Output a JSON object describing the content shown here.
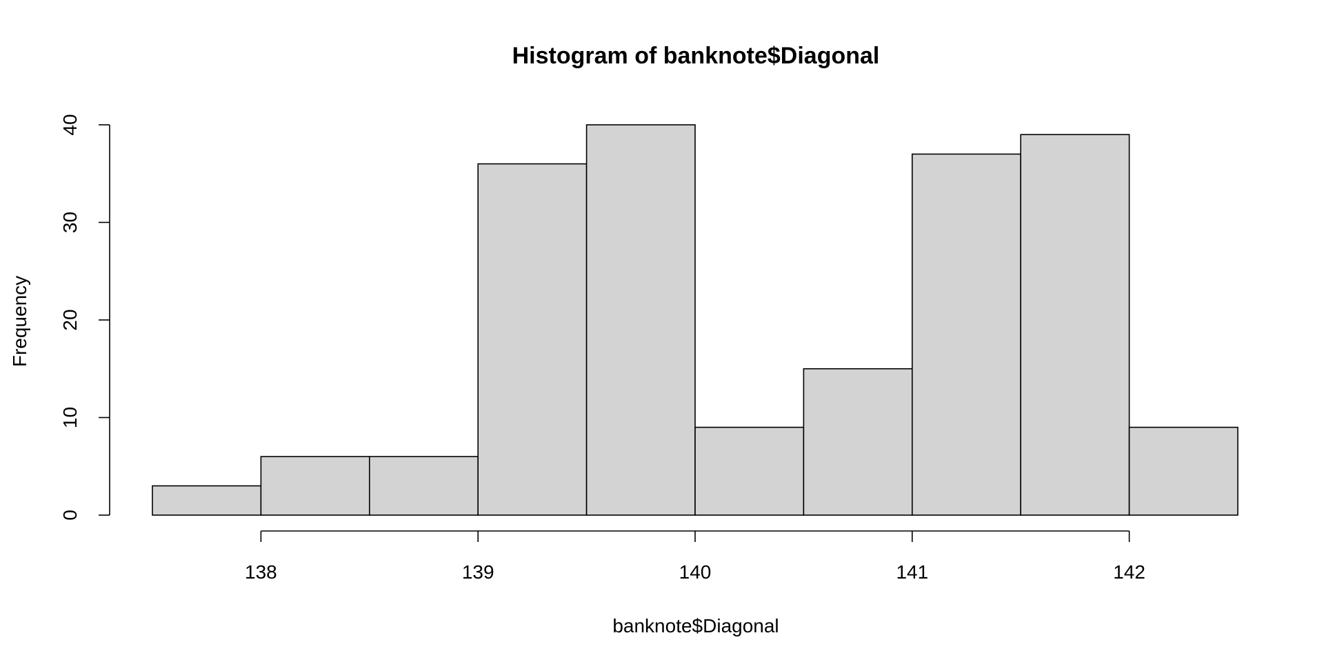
{
  "chart_data": {
    "type": "histogram",
    "title": "Histogram of banknote$Diagonal",
    "xlabel": "banknote$Diagonal",
    "ylabel": "Frequency",
    "bins": [
      {
        "start": 137.5,
        "end": 138.0,
        "count": 3
      },
      {
        "start": 138.0,
        "end": 138.5,
        "count": 6
      },
      {
        "start": 138.5,
        "end": 139.0,
        "count": 6
      },
      {
        "start": 139.0,
        "end": 139.5,
        "count": 36
      },
      {
        "start": 139.5,
        "end": 140.0,
        "count": 40
      },
      {
        "start": 140.0,
        "end": 140.5,
        "count": 9
      },
      {
        "start": 140.5,
        "end": 141.0,
        "count": 15
      },
      {
        "start": 141.0,
        "end": 141.5,
        "count": 37
      },
      {
        "start": 141.5,
        "end": 142.0,
        "count": 39
      },
      {
        "start": 142.0,
        "end": 142.5,
        "count": 9
      }
    ],
    "xlim": [
      137.5,
      142.5
    ],
    "ylim": [
      0,
      40
    ],
    "x_ticks": [
      138,
      139,
      140,
      141,
      142
    ],
    "y_ticks": [
      0,
      10,
      20,
      30,
      40
    ],
    "bar_color": "#d3d3d3",
    "edge_color": "#000000",
    "grid": false,
    "legend": "none"
  }
}
